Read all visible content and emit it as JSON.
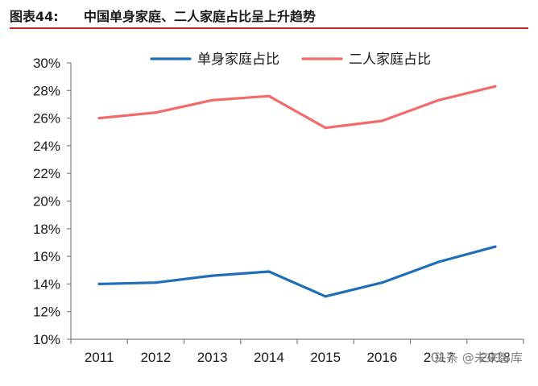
{
  "header": {
    "label": "图表44:",
    "title": "中国单身家庭、二人家庭占比呈上升趋势"
  },
  "colors": {
    "single": "#1f6fb8",
    "couple": "#f26b6b",
    "axis": "#808080",
    "rule": "#c0202a"
  },
  "watermark": "头条 @未来智库",
  "chart_data": {
    "type": "line",
    "title": "",
    "xlabel": "",
    "ylabel": "",
    "categories": [
      "2011",
      "2012",
      "2013",
      "2014",
      "2015",
      "2016",
      "2017",
      "2018"
    ],
    "y_ticks": [
      "10%",
      "12%",
      "14%",
      "16%",
      "18%",
      "20%",
      "22%",
      "24%",
      "26%",
      "28%",
      "30%"
    ],
    "ylim": [
      10,
      30
    ],
    "grid": false,
    "legend_position": "top",
    "series": [
      {
        "name": "单身家庭占比",
        "color": "#1f6fb8",
        "values": [
          14.0,
          14.1,
          14.6,
          14.9,
          13.1,
          14.1,
          15.6,
          16.7
        ]
      },
      {
        "name": "二人家庭占比",
        "color": "#f26b6b",
        "values": [
          26.0,
          26.4,
          27.3,
          27.6,
          25.3,
          25.8,
          27.3,
          28.3
        ]
      }
    ]
  }
}
